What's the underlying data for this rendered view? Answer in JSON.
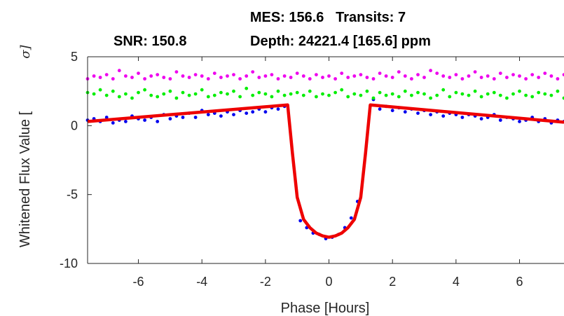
{
  "chart_data": {
    "type": "scatter",
    "title_line1": "MES: 156.6   Transits: 7",
    "title_snr": "SNR: 150.8",
    "title_depth": "Depth: 24221.4 [165.6] ppm",
    "xlabel": "Phase [Hours]",
    "ylabel": "Whitened Flux Value [",
    "ylabel_unit": "σ]",
    "xlim": [
      -7.6,
      7.4
    ],
    "ylim": [
      -10,
      5
    ],
    "xticks": [
      -6,
      -4,
      -2,
      0,
      2,
      4,
      6
    ],
    "yticks": [
      -10,
      -5,
      0,
      5
    ],
    "colors": {
      "data": "#0000ee",
      "odd": "#00ee00",
      "even": "#ee00ee",
      "model": "#ee0000"
    },
    "model_curve": {
      "name": "model",
      "x": [
        -7.6,
        -1.3,
        -1.15,
        -1.0,
        -0.8,
        -0.6,
        -0.4,
        -0.2,
        0.0,
        0.2,
        0.4,
        0.6,
        0.8,
        1.0,
        1.15,
        1.3,
        7.4
      ],
      "y": [
        0.3,
        1.5,
        -2.0,
        -5.2,
        -6.8,
        -7.4,
        -7.8,
        -8.0,
        -8.1,
        -8.0,
        -7.8,
        -7.4,
        -6.8,
        -5.2,
        -2.0,
        1.5,
        0.25
      ]
    },
    "series": [
      {
        "key": "data",
        "x": [
          -7.6,
          -7.4,
          -7.2,
          -7.0,
          -6.8,
          -6.6,
          -6.4,
          -6.2,
          -6.0,
          -5.8,
          -5.6,
          -5.4,
          -5.2,
          -5.0,
          -4.8,
          -4.6,
          -4.4,
          -4.2,
          -4.0,
          -3.8,
          -3.6,
          -3.4,
          -3.2,
          -3.0,
          -2.8,
          -2.6,
          -2.4,
          -2.2,
          -2.0,
          -1.8,
          -1.6,
          -1.4,
          -0.9,
          -0.7,
          -0.5,
          -0.3,
          -0.1,
          0.1,
          0.3,
          0.5,
          0.7,
          0.9,
          1.4,
          1.6,
          1.8,
          2.0,
          2.2,
          2.4,
          2.6,
          2.8,
          3.0,
          3.2,
          3.4,
          3.6,
          3.8,
          4.0,
          4.2,
          4.4,
          4.6,
          4.8,
          5.0,
          5.2,
          5.4,
          5.6,
          5.8,
          6.0,
          6.2,
          6.4,
          6.6,
          6.8,
          7.0,
          7.2,
          7.4
        ],
        "y": [
          0.4,
          0.5,
          0.3,
          0.6,
          0.2,
          0.4,
          0.3,
          0.7,
          0.5,
          0.4,
          0.6,
          0.3,
          0.8,
          0.5,
          0.7,
          0.6,
          0.9,
          0.6,
          1.1,
          0.8,
          0.9,
          0.7,
          1.0,
          0.8,
          1.1,
          0.9,
          1.0,
          1.2,
          1.0,
          1.3,
          1.2,
          1.4,
          -6.9,
          -7.4,
          -7.8,
          -7.9,
          -8.2,
          -8.1,
          -7.9,
          -7.4,
          -6.7,
          -5.5,
          1.9,
          1.2,
          1.4,
          1.1,
          1.3,
          1.0,
          1.2,
          0.9,
          1.1,
          0.8,
          1.0,
          0.7,
          0.9,
          0.8,
          0.6,
          0.8,
          0.7,
          0.5,
          0.6,
          0.8,
          0.4,
          0.6,
          0.5,
          0.3,
          0.4,
          0.6,
          0.3,
          0.5,
          0.2,
          0.4,
          0.3
        ]
      },
      {
        "key": "odd",
        "x": [
          -7.6,
          -7.4,
          -7.2,
          -7.0,
          -6.8,
          -6.6,
          -6.4,
          -6.2,
          -6.0,
          -5.8,
          -5.6,
          -5.4,
          -5.2,
          -5.0,
          -4.8,
          -4.6,
          -4.4,
          -4.2,
          -4.0,
          -3.8,
          -3.6,
          -3.4,
          -3.2,
          -3.0,
          -2.8,
          -2.6,
          -2.4,
          -2.2,
          -2.0,
          -1.8,
          -1.6,
          -1.4,
          -1.2,
          -1.0,
          -0.8,
          -0.6,
          -0.4,
          -0.2,
          0.0,
          0.2,
          0.4,
          0.6,
          0.8,
          1.0,
          1.2,
          1.4,
          1.6,
          1.8,
          2.0,
          2.2,
          2.4,
          2.6,
          2.8,
          3.0,
          3.2,
          3.4,
          3.6,
          3.8,
          4.0,
          4.2,
          4.4,
          4.6,
          4.8,
          5.0,
          5.2,
          5.4,
          5.6,
          5.8,
          6.0,
          6.2,
          6.4,
          6.6,
          6.8,
          7.0,
          7.2,
          7.4
        ],
        "y": [
          2.4,
          2.3,
          2.6,
          2.2,
          2.5,
          2.1,
          2.3,
          2.0,
          2.4,
          2.6,
          2.2,
          2.1,
          2.3,
          2.5,
          2.0,
          2.4,
          2.2,
          2.3,
          2.6,
          2.1,
          2.2,
          2.4,
          2.3,
          2.5,
          2.1,
          2.7,
          2.2,
          2.4,
          2.3,
          2.1,
          2.5,
          2.2,
          2.3,
          2.4,
          2.2,
          2.5,
          2.1,
          2.3,
          2.2,
          2.4,
          2.6,
          2.1,
          2.3,
          2.2,
          2.5,
          2.0,
          2.4,
          2.2,
          2.3,
          2.1,
          2.5,
          2.2,
          2.4,
          2.3,
          2.0,
          2.2,
          2.6,
          2.1,
          2.4,
          2.3,
          2.2,
          2.5,
          2.1,
          2.3,
          2.4,
          2.2,
          2.0,
          2.3,
          2.5,
          2.2,
          2.1,
          2.4,
          2.3,
          2.2,
          2.5,
          2.0
        ]
      },
      {
        "key": "even",
        "x": [
          -7.6,
          -7.4,
          -7.2,
          -7.0,
          -6.8,
          -6.6,
          -6.4,
          -6.2,
          -6.0,
          -5.8,
          -5.6,
          -5.4,
          -5.2,
          -5.0,
          -4.8,
          -4.6,
          -4.4,
          -4.2,
          -4.0,
          -3.8,
          -3.6,
          -3.4,
          -3.2,
          -3.0,
          -2.8,
          -2.6,
          -2.4,
          -2.2,
          -2.0,
          -1.8,
          -1.6,
          -1.4,
          -1.2,
          -1.0,
          -0.8,
          -0.6,
          -0.4,
          -0.2,
          0.0,
          0.2,
          0.4,
          0.6,
          0.8,
          1.0,
          1.2,
          1.4,
          1.6,
          1.8,
          2.0,
          2.2,
          2.4,
          2.6,
          2.8,
          3.0,
          3.2,
          3.4,
          3.6,
          3.8,
          4.0,
          4.2,
          4.4,
          4.6,
          4.8,
          5.0,
          5.2,
          5.4,
          5.6,
          5.8,
          6.0,
          6.2,
          6.4,
          6.6,
          6.8,
          7.0,
          7.2,
          7.4
        ],
        "y": [
          3.4,
          3.6,
          3.5,
          3.7,
          3.4,
          4.0,
          3.6,
          3.5,
          3.8,
          3.4,
          3.6,
          3.7,
          3.5,
          3.4,
          3.9,
          3.6,
          3.5,
          3.7,
          3.6,
          3.4,
          3.8,
          3.5,
          3.6,
          3.7,
          3.4,
          3.6,
          3.9,
          3.5,
          3.6,
          3.7,
          3.4,
          3.6,
          3.5,
          3.8,
          3.6,
          3.4,
          3.7,
          3.5,
          3.6,
          3.4,
          3.8,
          3.5,
          3.6,
          3.7,
          3.5,
          3.4,
          3.8,
          3.6,
          3.5,
          3.9,
          3.6,
          3.4,
          3.7,
          3.5,
          4.0,
          3.8,
          3.6,
          3.5,
          3.7,
          3.4,
          3.6,
          3.9,
          3.5,
          3.6,
          3.4,
          3.8,
          3.5,
          3.7,
          3.6,
          3.4,
          3.7,
          3.5,
          3.8,
          3.6,
          3.4,
          3.7
        ]
      }
    ]
  }
}
